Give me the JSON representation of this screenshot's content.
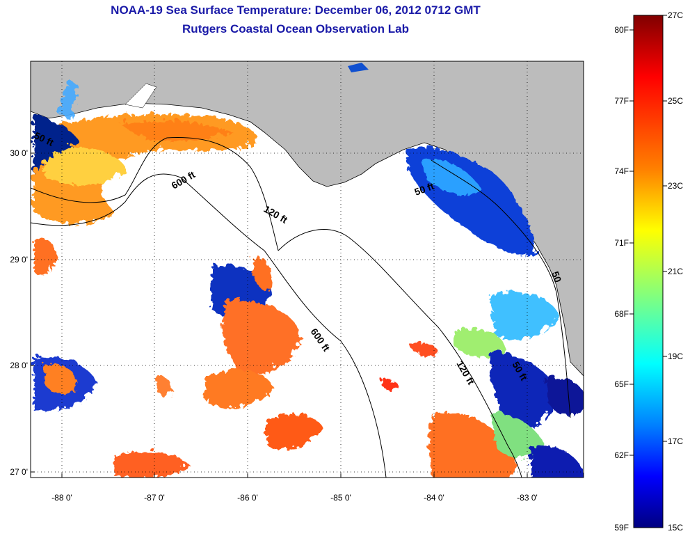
{
  "title": "NOAA-19 Sea Surface Temperature:  December 06, 2012 0712 GMT",
  "subtitle": "Rutgers Coastal Ocean Observation Lab",
  "map": {
    "lon_ticks": [
      "-88 0'",
      "-87 0'",
      "-86 0'",
      "-85 0'",
      "-84 0'",
      "-83 0'"
    ],
    "lat_ticks": [
      "30 0'",
      "29 0'",
      "28 0'",
      "27 0'"
    ],
    "contour_labels": [
      "50 ft",
      "600 ft",
      "120 ft",
      "50 ft",
      "600 ft",
      "120 ft",
      "50 ft",
      "50"
    ]
  },
  "colorbar": {
    "fahrenheit": [
      "80F",
      "77F",
      "74F",
      "71F",
      "68F",
      "65F",
      "62F",
      "59F"
    ],
    "celsius": [
      "27C",
      "25C",
      "23C",
      "21C",
      "19C",
      "17C",
      "15C"
    ],
    "colors": [
      "#800000",
      "#ff0000",
      "#ff8000",
      "#ffff00",
      "#80ff80",
      "#00ffff",
      "#0080ff",
      "#0000ff",
      "#000080"
    ]
  },
  "colors": {
    "land": "#bcbcbc",
    "ocean_nodata": "#ffffff",
    "title": "#1a1aa8"
  }
}
